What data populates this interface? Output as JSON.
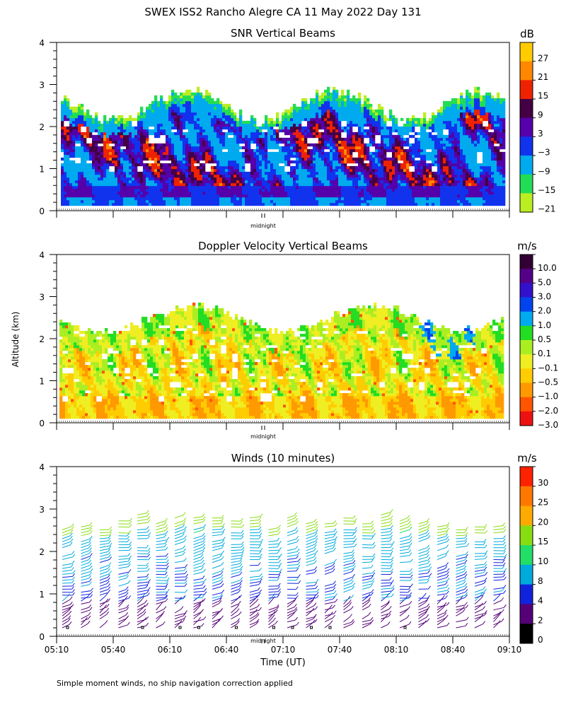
{
  "figure_title": "SWEX ISS2 Rancho Alegre CA  11 May 2022 Day 131",
  "shared_ylabel": "Altitude (km)",
  "footnote": "Simple moment winds, no ship navigation correction applied",
  "midnight_label": "midnight",
  "chart_data": [
    {
      "type": "heatmap",
      "title": "SNR Vertical Beams",
      "ylabel": "Altitude (km)",
      "ylim": [
        0,
        4
      ],
      "yticks": [
        "0",
        "1",
        "2",
        "3",
        "4"
      ],
      "xlim": [
        "05:10",
        "09:10"
      ],
      "colorbar": {
        "unit": "dB",
        "labels": [
          "27",
          "21",
          "15",
          "9",
          "3",
          "−3",
          "−9",
          "−15",
          "−21"
        ],
        "colors": [
          "#ffcc00",
          "#ff8800",
          "#ee2200",
          "#440044",
          "#5500aa",
          "#1133ee",
          "#00aaee",
          "#22dd55",
          "#bbee22"
        ]
      }
    },
    {
      "type": "heatmap",
      "title": "Doppler Velocity Vertical Beams",
      "ylabel": "Altitude (km)",
      "ylim": [
        0,
        4
      ],
      "yticks": [
        "0",
        "1",
        "2",
        "3",
        "4"
      ],
      "xlim": [
        "05:10",
        "09:10"
      ],
      "colorbar": {
        "unit": "m/s",
        "labels": [
          "10.0",
          "5.0",
          "3.0",
          "2.0",
          "1.0",
          "0.5",
          "0.1",
          "−0.1",
          "−0.5",
          "−1.0",
          "−2.0",
          "−3.0"
        ],
        "colors": [
          "#330033",
          "#550088",
          "#3311cc",
          "#0044ee",
          "#00aaee",
          "#22dd22",
          "#aaee22",
          "#eeee22",
          "#ffcc00",
          "#ff9900",
          "#ff5500",
          "#ee1111"
        ]
      }
    },
    {
      "type": "wind-barbs",
      "title": "Winds (10 minutes)",
      "ylabel": "Altitude (km)",
      "xlabel": "Time (UT)",
      "ylim": [
        0,
        4
      ],
      "yticks": [
        "0",
        "1",
        "2",
        "3",
        "4"
      ],
      "xticks": [
        "05:10",
        "05:40",
        "06:10",
        "06:40",
        "07:10",
        "07:40",
        "08:10",
        "08:40",
        "09:10"
      ],
      "profile_interval_minutes": 10,
      "colorbar": {
        "unit": "m/s",
        "labels": [
          "30",
          "25",
          "20",
          "15",
          "10",
          "8",
          "4",
          "2",
          "0"
        ],
        "colors": [
          "#ff2200",
          "#ff7700",
          "#ffaa00",
          "#88dd11",
          "#22dd66",
          "#00aadd",
          "#1122dd",
          "#550077",
          "#000000"
        ]
      }
    }
  ]
}
